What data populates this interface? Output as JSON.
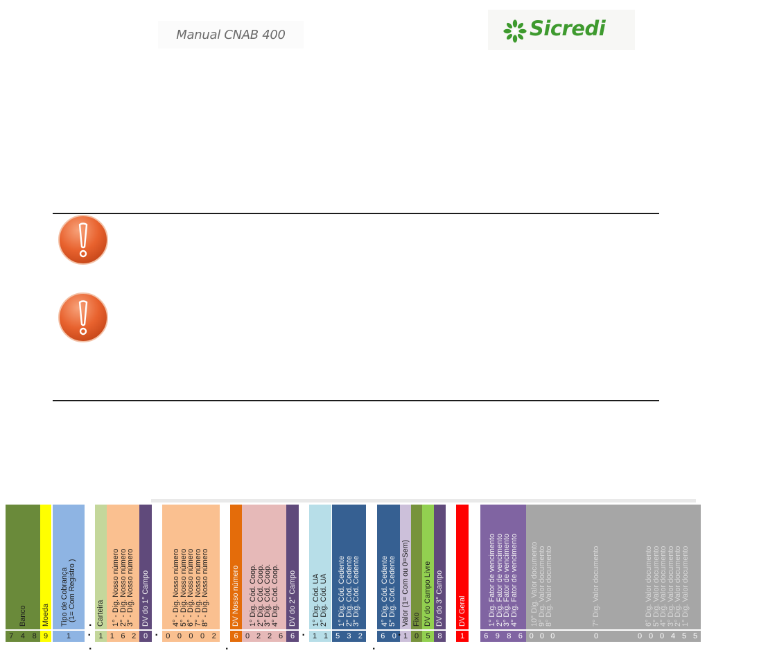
{
  "header": {
    "title": "Manual CNAB 400",
    "brand": "Sicredi",
    "brand_color": "#3e9a2e",
    "logo_icon": "sicredi-flower-icon"
  },
  "notes": {
    "icons": [
      "warning-icon",
      "warning-icon"
    ],
    "accent_color": "#e8622e"
  },
  "barcode_diagram": {
    "fields": [
      {
        "label": "Banco",
        "digits": [
          "7",
          "4",
          "8"
        ],
        "color": "#6a8a3a"
      },
      {
        "label": "Moeda",
        "digits": [
          "9"
        ],
        "color": "#ffff00"
      },
      {
        "label": "Tipo de Cobrança\n  (1= Com Registro )",
        "digits": [
          "1"
        ],
        "color": "#8eb4e3"
      },
      {
        "label": "Carteira",
        "digits": [
          "1"
        ],
        "color": "#c4d79b"
      },
      {
        "label": "1° - Dig. Nosso número\n2° - Dig. Nosso número\n3° - Dig. Nosso número",
        "digits": [
          "1",
          "6",
          "2"
        ],
        "color": "#fac090"
      },
      {
        "label": "DV do 1° Campo",
        "digits": [
          "0"
        ],
        "color": "#604a7b"
      },
      {
        "label": "4° - Dig. Nosso número\n5° - Dig. Nosso número\n6° - Dig. Nosso número\n7° - Dig. Nosso número\n8° - Dig. Nosso número",
        "digits": [
          "0",
          "0",
          "0",
          "0",
          "2"
        ],
        "color": "#fac090"
      },
      {
        "label": "DV Nosso número",
        "digits": [
          "6"
        ],
        "color": "#e46c0a"
      },
      {
        "label": "1° Dig. Cód. Coop.\n2° Dig. Cód. Coop.\n3° Dig. Cód. Coop.\n4° Dig. Cód. Coop.",
        "digits": [
          "0",
          "2",
          "2",
          "6"
        ],
        "color": "#e6b9b8"
      },
      {
        "label": "DV do 2° Campo",
        "digits": [
          "6"
        ],
        "color": "#604a7b"
      },
      {
        "label": "1° Dig. Cód. UA\n2° Dig. Cód. UA",
        "digits": [
          "1",
          "1"
        ],
        "color": "#b7dee8"
      },
      {
        "label": "1° Dig. Cód. Cedente\n2° Dig. Cód. Cedente\n3° Dig. Cód. Cedente",
        "digits": [
          "5",
          "3",
          "2"
        ],
        "color": "#366092"
      },
      {
        "label": "4° Dig. Cód. Cedente\n5° Dig. Cód. Cedente",
        "digits": [
          "6",
          "0"
        ],
        "color": "#366092"
      },
      {
        "label": "Valor (1= Com ou 0=Sem)",
        "digits": [
          "1"
        ],
        "color": "#ccc0da"
      },
      {
        "label": "Fixo",
        "digits": [
          "0"
        ],
        "color": "#77933c"
      },
      {
        "label": "DV do Campo Livre",
        "digits": [
          "5"
        ],
        "color": "#92d050"
      },
      {
        "label": "DV do 3° Campo",
        "digits": [
          "8"
        ],
        "color": "#604a7b"
      },
      {
        "label": "DV Geral",
        "digits": [
          "1"
        ],
        "color": "#ff0000"
      },
      {
        "label": "1° Dig. Fator de vencimento\n2° Dig. Fator de vencimento\n3° Dig. Fator de vencimento\n4° Dig. Fator de vencimento",
        "digits": [
          "6",
          "9",
          "8",
          "6"
        ],
        "color": "#8064a2"
      },
      {
        "label": "10° Dig. Valor documento\n9° Dig. Valor documento\n8° Dig. Valor documento",
        "digits": [
          "0",
          "0",
          "0"
        ],
        "color": "#a6a6a6"
      },
      {
        "label": "7° Dig. Valor documento",
        "digits": [
          "0"
        ],
        "color": "#a6a6a6"
      },
      {
        "label": "6° Dig. Valor documento\n5° Dig. Valor documento\n4° Dig. Valor documento\n3° Dig. Valor documento\n2° Dig. Valor documento\n1° Dig. Valor documento",
        "digits": [
          "0",
          "0",
          "0",
          "4",
          "5",
          "5"
        ],
        "color": "#a6a6a6"
      }
    ],
    "separator": "."
  }
}
